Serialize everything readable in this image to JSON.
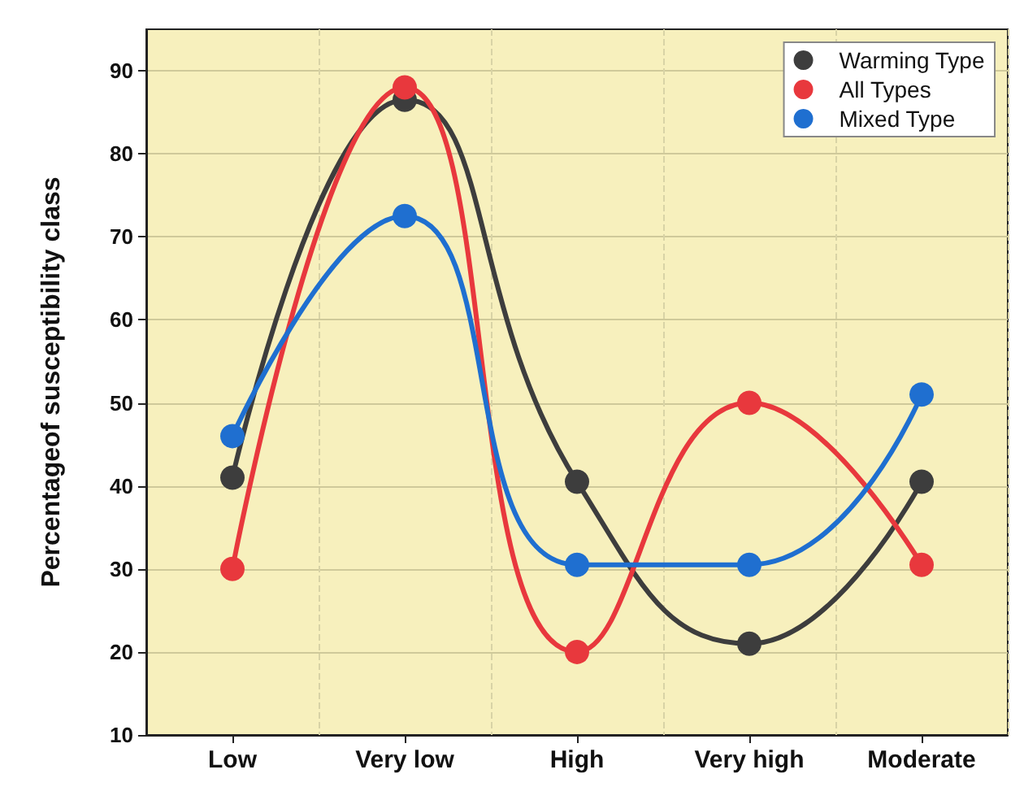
{
  "chart_data": {
    "type": "line",
    "ylabel": "Percentageof susceptibility class",
    "categories": [
      "Low",
      "Very low",
      "High",
      "Very high",
      "Moderate"
    ],
    "series": [
      {
        "name": "Warming Type",
        "color": "#3d3d3d",
        "values": [
          41,
          86.5,
          40.5,
          21,
          40.5
        ]
      },
      {
        "name": "All Types",
        "color": "#e8383d",
        "values": [
          30,
          88,
          20,
          50,
          30.5
        ]
      },
      {
        "name": "Mixed Type",
        "color": "#1f6fd0",
        "values": [
          46,
          72.5,
          30.5,
          30.5,
          51
        ]
      }
    ],
    "ylim": [
      10,
      95
    ],
    "yticks": [
      10,
      20,
      30,
      40,
      50,
      60,
      70,
      80,
      90
    ],
    "grid": true,
    "legend": "top right",
    "marker": "circle",
    "line_style": "solid"
  }
}
